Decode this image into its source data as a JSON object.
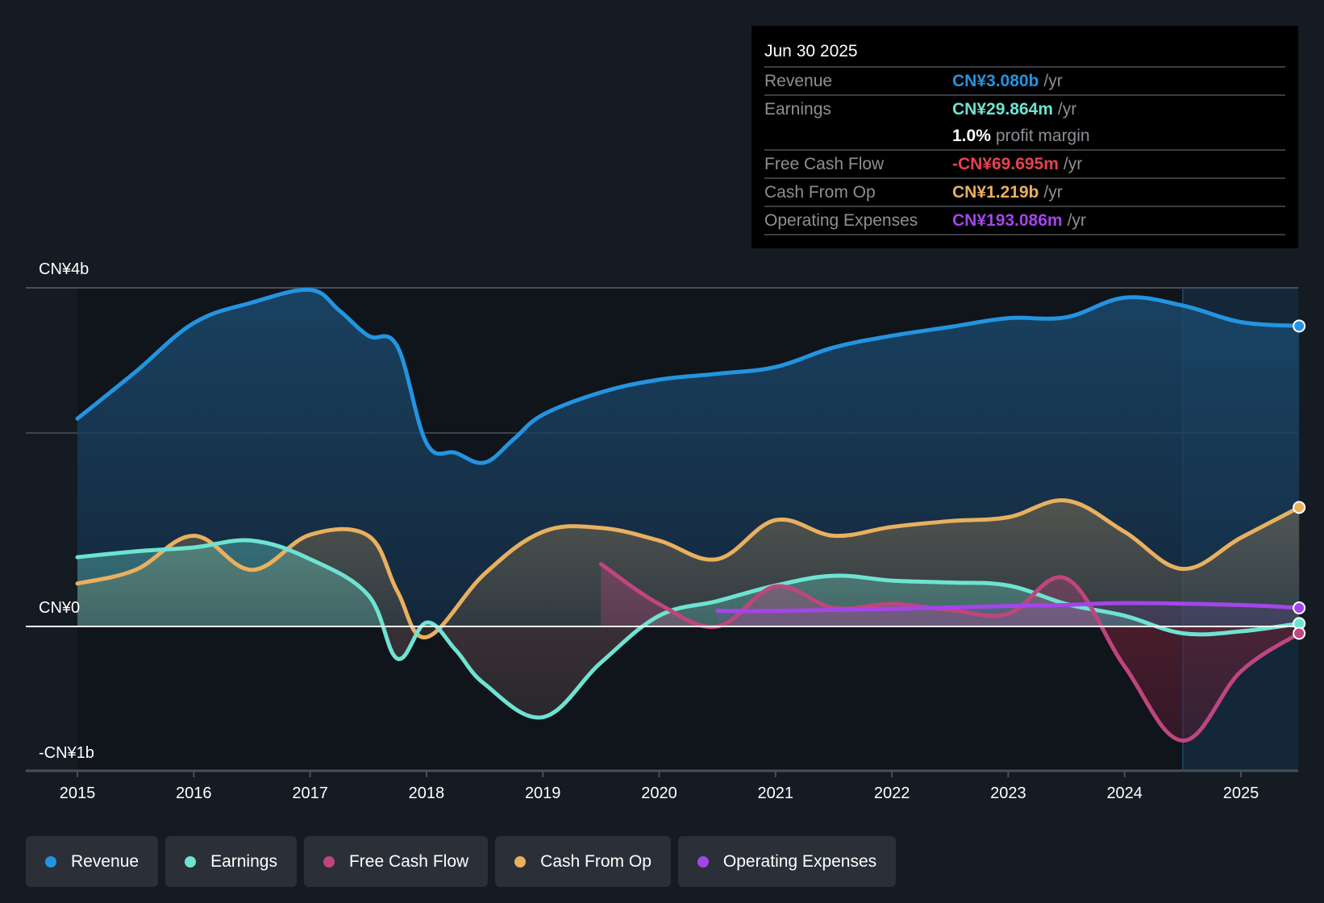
{
  "tooltip": {
    "date": "Jun 30 2025",
    "rows": [
      {
        "label": "Revenue",
        "value": "CN¥3.080b",
        "unit": "/yr",
        "color": "#2394e0"
      },
      {
        "label": "Earnings",
        "value": "CN¥29.864m",
        "unit": "/yr",
        "color": "#6ee3d2"
      },
      {
        "label": "",
        "value": "1.0%",
        "unit": "profit margin",
        "color": "#ffffff"
      },
      {
        "label": "Free Cash Flow",
        "value": "-CN¥69.695m",
        "unit": "/yr",
        "color": "#e5434f"
      },
      {
        "label": "Cash From Op",
        "value": "CN¥1.219b",
        "unit": "/yr",
        "color": "#e9b05f"
      },
      {
        "label": "Operating Expenses",
        "value": "CN¥193.086m",
        "unit": "/yr",
        "color": "#a346e8"
      }
    ]
  },
  "legend": [
    {
      "label": "Revenue",
      "color": "#2394e0"
    },
    {
      "label": "Earnings",
      "color": "#6ee3d2"
    },
    {
      "label": "Free Cash Flow",
      "color": "#c0457e"
    },
    {
      "label": "Cash From Op",
      "color": "#e9b05f"
    },
    {
      "label": "Operating Expenses",
      "color": "#a346e8"
    }
  ],
  "chart_data": {
    "type": "area",
    "title": "",
    "xlabel": "",
    "ylabel": "",
    "units": "CN¥ billions",
    "y_tick_labels": [
      "CN¥4b",
      "CN¥0",
      "-CN¥1b"
    ],
    "x_tick_labels": [
      "2015",
      "2016",
      "2017",
      "2018",
      "2019",
      "2020",
      "2021",
      "2022",
      "2023",
      "2024",
      "2025"
    ],
    "xlim": [
      2015,
      2025.5
    ],
    "ylim": [
      -1.48,
      3.47
    ],
    "grid": true,
    "legend_position": "bottom",
    "highlight_from": 2024.5,
    "series": [
      {
        "name": "Revenue",
        "color": "#2394e0",
        "x": [
          2015,
          2015.5,
          2016,
          2016.5,
          2017,
          2017.25,
          2017.5,
          2017.75,
          2018,
          2018.25,
          2018.5,
          2018.75,
          2019,
          2019.5,
          2020,
          2020.5,
          2021,
          2021.5,
          2022,
          2022.5,
          2023,
          2023.5,
          2024,
          2024.5,
          2025,
          2025.5
        ],
        "values": [
          2.13,
          2.61,
          3.11,
          3.32,
          3.45,
          3.24,
          2.98,
          2.87,
          1.88,
          1.78,
          1.68,
          1.92,
          2.17,
          2.4,
          2.53,
          2.59,
          2.66,
          2.86,
          2.98,
          3.07,
          3.16,
          3.17,
          3.37,
          3.29,
          3.12,
          3.08
        ]
      },
      {
        "name": "Earnings",
        "color": "#6ee3d2",
        "x": [
          2015,
          2015.5,
          2016,
          2016.5,
          2017,
          2017.5,
          2017.75,
          2018,
          2018.25,
          2018.5,
          2019,
          2019.5,
          2020,
          2020.5,
          2021,
          2021.5,
          2022,
          2022.5,
          2023,
          2023.5,
          2024,
          2024.5,
          2025,
          2025.5
        ],
        "values": [
          0.71,
          0.77,
          0.81,
          0.88,
          0.69,
          0.32,
          -0.33,
          0.04,
          -0.24,
          -0.59,
          -0.93,
          -0.37,
          0.11,
          0.26,
          0.42,
          0.52,
          0.47,
          0.45,
          0.42,
          0.23,
          0.11,
          -0.07,
          -0.05,
          0.03
        ]
      },
      {
        "name": "Free Cash Flow",
        "color": "#c0457e",
        "x": [
          2019.5,
          2020,
          2020.5,
          2021,
          2021.5,
          2022,
          2022.5,
          2023,
          2023.5,
          2024,
          2024.5,
          2025,
          2025.5
        ],
        "values": [
          0.64,
          0.23,
          0.0,
          0.41,
          0.19,
          0.23,
          0.17,
          0.13,
          0.49,
          -0.41,
          -1.17,
          -0.46,
          -0.07
        ]
      },
      {
        "name": "Cash From Op",
        "color": "#e9b05f",
        "x": [
          2015,
          2015.5,
          2016,
          2016.5,
          2017,
          2017.5,
          2017.75,
          2018,
          2018.5,
          2019,
          2019.5,
          2020,
          2020.5,
          2021,
          2021.5,
          2022,
          2022.5,
          2023,
          2023.5,
          2024,
          2024.5,
          2025,
          2025.5
        ],
        "values": [
          0.44,
          0.58,
          0.93,
          0.58,
          0.94,
          0.93,
          0.36,
          -0.11,
          0.54,
          0.97,
          1.01,
          0.88,
          0.69,
          1.09,
          0.93,
          1.02,
          1.08,
          1.12,
          1.29,
          0.97,
          0.59,
          0.91,
          1.22
        ]
      },
      {
        "name": "Operating Expenses",
        "color": "#a346e8",
        "x": [
          2020.5,
          2021,
          2022,
          2023,
          2023.5,
          2024,
          2025,
          2025.5
        ],
        "values": [
          0.16,
          0.16,
          0.18,
          0.21,
          0.22,
          0.24,
          0.22,
          0.19
        ]
      }
    ]
  }
}
